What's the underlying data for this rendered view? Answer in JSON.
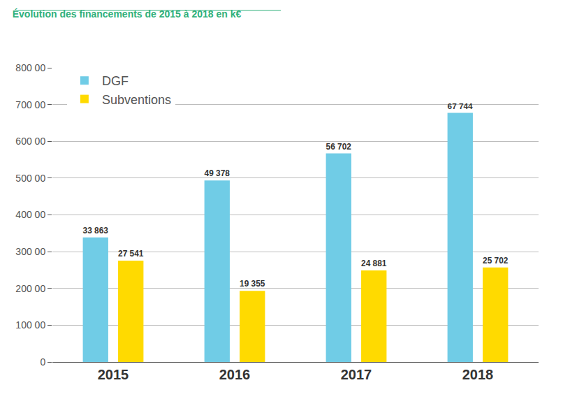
{
  "chart_data": {
    "type": "bar",
    "title": "Évolution des financements de 2015 à 2018 en k€",
    "categories": [
      "2015",
      "2016",
      "2017",
      "2018"
    ],
    "series": [
      {
        "name": "DGF",
        "color": "#70cce6",
        "values": [
          33863,
          49378,
          56702,
          67744
        ],
        "value_labels": [
          "33 863",
          "49 378",
          "56 702",
          "67 744"
        ]
      },
      {
        "name": "Subventions",
        "color": "#ffda00",
        "values": [
          27541,
          19355,
          24881,
          25702
        ],
        "value_labels": [
          "27 541",
          "19 355",
          "24 881",
          "25 702"
        ]
      }
    ],
    "ylim": [
      0,
      80000
    ],
    "yticks": [
      0,
      {
        "value": 10000,
        "label": "100 00"
      },
      {
        "value": 20000,
        "label": "200 00"
      },
      {
        "value": 30000,
        "label": "300 00"
      },
      {
        "value": 40000,
        "label": "400 00"
      },
      {
        "value": 50000,
        "label": "500 00"
      },
      {
        "value": 60000,
        "label": "600 00"
      },
      {
        "value": 70000,
        "label": "700 00"
      },
      {
        "value": 80000,
        "label": "800 00"
      }
    ],
    "grid": true,
    "legend": "top-left",
    "data_labels": true
  }
}
